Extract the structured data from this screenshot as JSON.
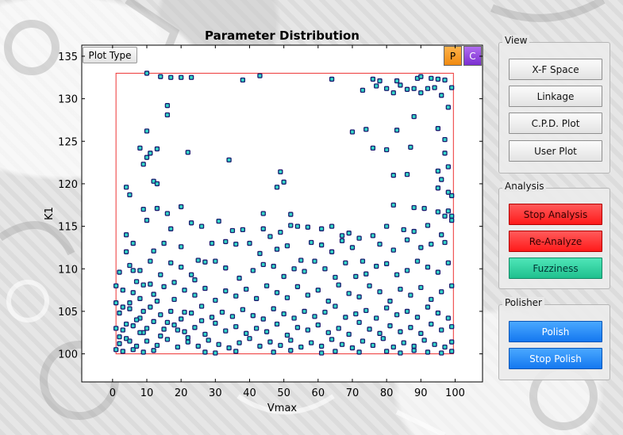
{
  "chart": {
    "title": "Parameter Distribution",
    "plot_type_label": "Plot Type",
    "p_label": "P",
    "c_label": "C"
  },
  "sidebar": {
    "view": {
      "label": "View",
      "buttons": [
        "X-F Space",
        "Linkage",
        "C.P.D. Plot",
        "User Plot"
      ]
    },
    "analysis": {
      "label": "Analysis",
      "buttons": [
        "Stop Analysis",
        "Re-Analyze",
        "Fuzziness"
      ]
    },
    "polisher": {
      "label": "Polisher",
      "buttons": [
        "Polish",
        "Stop Polish"
      ]
    }
  },
  "colors": {
    "marker_fill": "#33d6c8",
    "marker_edge": "#1a1a6e",
    "boundary": "#e33",
    "stop_analysis": "#ff2a2a",
    "fuzziness": "#25c896",
    "polish": "#1e88f5",
    "p_button": "#f89a20",
    "c_button": "#8a3de0"
  },
  "chart_data": {
    "type": "scatter",
    "xlabel": "Vmax",
    "ylabel": "K1",
    "xlim": [
      -9,
      108
    ],
    "ylim": [
      96.7,
      136.3
    ],
    "xticks": [
      0,
      10,
      20,
      30,
      40,
      50,
      60,
      70,
      80,
      90,
      100
    ],
    "yticks": [
      100,
      105,
      110,
      115,
      120,
      125,
      130,
      135
    ],
    "boundary": {
      "x": [
        1,
        99.5
      ],
      "y": [
        100,
        133
      ]
    },
    "points": [
      [
        10,
        133
      ],
      [
        14,
        132.6
      ],
      [
        17,
        132.5
      ],
      [
        20,
        132.5
      ],
      [
        23,
        132.5
      ],
      [
        38,
        132.2
      ],
      [
        43,
        132.7
      ],
      [
        64,
        132.3
      ],
      [
        76,
        132.3
      ],
      [
        78,
        132.1
      ],
      [
        83,
        132.1
      ],
      [
        89,
        132.4
      ],
      [
        90,
        132.6
      ],
      [
        93,
        132.4
      ],
      [
        95,
        132.3
      ],
      [
        97,
        132.2
      ],
      [
        77,
        131.5
      ],
      [
        80,
        131.2
      ],
      [
        84,
        131.6
      ],
      [
        86,
        131.1
      ],
      [
        88,
        131.2
      ],
      [
        92,
        131.2
      ],
      [
        94,
        131.3
      ],
      [
        99,
        131.3
      ],
      [
        73,
        131
      ],
      [
        82,
        130.7
      ],
      [
        90,
        130.7
      ],
      [
        16,
        129.2
      ],
      [
        16,
        128.1
      ],
      [
        88,
        127.9
      ],
      [
        96,
        130.4
      ],
      [
        10,
        126.2
      ],
      [
        70,
        126.1
      ],
      [
        74,
        126.4
      ],
      [
        83,
        126.3
      ],
      [
        95,
        126.5
      ],
      [
        98,
        129
      ],
      [
        8,
        124.2
      ],
      [
        13,
        124.1
      ],
      [
        76,
        124.2
      ],
      [
        80,
        124
      ],
      [
        87,
        124.3
      ],
      [
        97,
        125.2
      ],
      [
        10,
        123.1
      ],
      [
        11,
        123.6
      ],
      [
        22,
        123.7
      ],
      [
        34,
        122.8
      ],
      [
        97,
        123.6
      ],
      [
        98,
        122
      ],
      [
        9,
        122.3
      ],
      [
        12,
        120.3
      ],
      [
        13,
        120
      ],
      [
        4,
        119.6
      ],
      [
        5,
        118.7
      ],
      [
        49,
        121.4
      ],
      [
        50,
        120.2
      ],
      [
        48,
        119.6
      ],
      [
        82,
        121
      ],
      [
        86,
        121.1
      ],
      [
        95,
        121.5
      ],
      [
        96,
        120.5
      ],
      [
        95,
        119.5
      ],
      [
        98,
        119
      ],
      [
        99,
        118.6
      ],
      [
        9,
        117
      ],
      [
        13,
        117.1
      ],
      [
        16,
        116.5
      ],
      [
        20,
        117.3
      ],
      [
        52,
        116.4
      ],
      [
        44,
        116.5
      ],
      [
        82,
        117.5
      ],
      [
        88,
        117.2
      ],
      [
        91,
        117.1
      ],
      [
        95,
        116.7
      ],
      [
        97,
        116.2
      ],
      [
        98,
        116.8
      ],
      [
        99,
        116.2
      ],
      [
        4,
        114
      ],
      [
        10,
        115.7
      ],
      [
        17,
        114.7
      ],
      [
        23,
        115.4
      ],
      [
        26,
        115
      ],
      [
        31,
        115.6
      ],
      [
        35,
        114.5
      ],
      [
        38,
        114.6
      ],
      [
        44,
        114.7
      ],
      [
        46,
        113.8
      ],
      [
        49,
        114.3
      ],
      [
        52,
        115.1
      ],
      [
        54,
        115
      ],
      [
        57,
        114.9
      ],
      [
        61,
        114.7
      ],
      [
        64,
        115
      ],
      [
        67,
        113.9
      ],
      [
        69,
        114.2
      ],
      [
        72,
        113.6
      ],
      [
        76,
        113.9
      ],
      [
        80,
        115
      ],
      [
        85,
        114.6
      ],
      [
        88,
        114.4
      ],
      [
        92,
        115.1
      ],
      [
        96,
        114
      ],
      [
        99,
        115.7
      ],
      [
        4,
        112
      ],
      [
        6,
        113
      ],
      [
        12,
        112.1
      ],
      [
        15,
        113
      ],
      [
        20,
        112.6
      ],
      [
        25,
        111
      ],
      [
        29,
        113
      ],
      [
        33,
        113.2
      ],
      [
        36,
        112.9
      ],
      [
        40,
        113
      ],
      [
        43,
        111.8
      ],
      [
        48,
        112.3
      ],
      [
        51,
        112.7
      ],
      [
        55,
        111
      ],
      [
        58,
        113.1
      ],
      [
        61,
        112.8
      ],
      [
        64,
        112
      ],
      [
        67,
        113.3
      ],
      [
        70,
        112.5
      ],
      [
        73,
        110.9
      ],
      [
        78,
        112.9
      ],
      [
        82,
        112.2
      ],
      [
        86,
        113.4
      ],
      [
        90,
        112.5
      ],
      [
        93,
        112.9
      ],
      [
        97,
        113.1
      ],
      [
        5,
        110.4
      ],
      [
        8,
        109.8
      ],
      [
        11,
        110.9
      ],
      [
        14,
        109.3
      ],
      [
        17,
        110.7
      ],
      [
        20,
        110.2
      ],
      [
        23,
        109.3
      ],
      [
        27,
        110.8
      ],
      [
        30,
        110.9
      ],
      [
        33,
        110.1
      ],
      [
        37,
        108.9
      ],
      [
        41,
        109.8
      ],
      [
        44,
        110.5
      ],
      [
        47,
        110.3
      ],
      [
        50,
        109.1
      ],
      [
        53,
        110
      ],
      [
        56,
        109.7
      ],
      [
        59,
        110.9
      ],
      [
        62,
        110
      ],
      [
        65,
        109
      ],
      [
        68,
        110.7
      ],
      [
        71,
        109.1
      ],
      [
        74,
        109.4
      ],
      [
        77,
        110.3
      ],
      [
        80,
        110.6
      ],
      [
        83,
        109.3
      ],
      [
        86,
        109.8
      ],
      [
        89,
        110.9
      ],
      [
        92,
        110.2
      ],
      [
        95,
        109.6
      ],
      [
        98,
        110.7
      ],
      [
        3,
        107.5
      ],
      [
        6,
        107.2
      ],
      [
        9,
        108.1
      ],
      [
        12,
        107
      ],
      [
        15,
        107.9
      ],
      [
        18,
        106.4
      ],
      [
        21,
        107.5
      ],
      [
        24,
        106.9
      ],
      [
        27,
        107.7
      ],
      [
        30,
        106.3
      ],
      [
        33,
        107.4
      ],
      [
        36,
        106.8
      ],
      [
        39,
        107.6
      ],
      [
        42,
        106.5
      ],
      [
        45,
        108
      ],
      [
        48,
        107.2
      ],
      [
        51,
        106.6
      ],
      [
        54,
        107.9
      ],
      [
        57,
        106.9
      ],
      [
        60,
        107.5
      ],
      [
        63,
        106.2
      ],
      [
        66,
        108.1
      ],
      [
        69,
        107.1
      ],
      [
        72,
        106.7
      ],
      [
        75,
        108
      ],
      [
        78,
        107.3
      ],
      [
        81,
        106.2
      ],
      [
        84,
        107.6
      ],
      [
        87,
        106.9
      ],
      [
        90,
        107.8
      ],
      [
        93,
        106.4
      ],
      [
        96,
        107.3
      ],
      [
        99,
        108
      ],
      [
        2,
        104.8
      ],
      [
        5,
        105.3
      ],
      [
        8,
        104.2
      ],
      [
        11,
        105.5
      ],
      [
        14,
        104.6
      ],
      [
        17,
        105
      ],
      [
        20,
        104.1
      ],
      [
        23,
        104.8
      ],
      [
        26,
        105.6
      ],
      [
        29,
        104.3
      ],
      [
        32,
        104.9
      ],
      [
        35,
        104.4
      ],
      [
        38,
        105.2
      ],
      [
        41,
        104.5
      ],
      [
        44,
        104.1
      ],
      [
        47,
        105.3
      ],
      [
        50,
        104.7
      ],
      [
        53,
        104.2
      ],
      [
        56,
        105
      ],
      [
        59,
        104.4
      ],
      [
        62,
        104.9
      ],
      [
        65,
        105.6
      ],
      [
        68,
        104.3
      ],
      [
        71,
        104.7
      ],
      [
        74,
        105.1
      ],
      [
        77,
        104.2
      ],
      [
        80,
        105.4
      ],
      [
        83,
        104.6
      ],
      [
        86,
        105
      ],
      [
        89,
        104.3
      ],
      [
        92,
        105.5
      ],
      [
        95,
        104.8
      ],
      [
        98,
        104.2
      ],
      [
        3,
        102.8
      ],
      [
        6,
        103.3
      ],
      [
        9,
        102.5
      ],
      [
        12,
        103.8
      ],
      [
        15,
        102.9
      ],
      [
        18,
        103.4
      ],
      [
        21,
        102.6
      ],
      [
        24,
        103.1
      ],
      [
        27,
        102.3
      ],
      [
        30,
        103.6
      ],
      [
        33,
        102.7
      ],
      [
        36,
        103.2
      ],
      [
        39,
        102.4
      ],
      [
        42,
        103
      ],
      [
        45,
        102.6
      ],
      [
        48,
        103.5
      ],
      [
        51,
        102.2
      ],
      [
        54,
        103.1
      ],
      [
        57,
        102.8
      ],
      [
        60,
        103.4
      ],
      [
        63,
        102.5
      ],
      [
        66,
        103
      ],
      [
        69,
        102.3
      ],
      [
        72,
        103.7
      ],
      [
        75,
        102.9
      ],
      [
        78,
        102.4
      ],
      [
        81,
        103.3
      ],
      [
        84,
        102.6
      ],
      [
        87,
        103.1
      ],
      [
        90,
        102.4
      ],
      [
        93,
        103.5
      ],
      [
        96,
        102.8
      ],
      [
        99,
        103.2
      ],
      [
        2,
        101.2
      ],
      [
        4,
        101.8
      ],
      [
        7,
        100.9
      ],
      [
        10,
        101.5
      ],
      [
        13,
        101
      ],
      [
        16,
        101.7
      ],
      [
        19,
        100.8
      ],
      [
        22,
        101.4
      ],
      [
        25,
        100.9
      ],
      [
        28,
        101.6
      ],
      [
        31,
        101.1
      ],
      [
        34,
        100.7
      ],
      [
        37,
        101.3
      ],
      [
        40,
        101.8
      ],
      [
        43,
        100.9
      ],
      [
        46,
        101.4
      ],
      [
        49,
        101
      ],
      [
        52,
        101.6
      ],
      [
        55,
        100.8
      ],
      [
        58,
        101.3
      ],
      [
        61,
        100.9
      ],
      [
        64,
        101.7
      ],
      [
        67,
        101.1
      ],
      [
        70,
        100.7
      ],
      [
        73,
        101.5
      ],
      [
        76,
        101
      ],
      [
        79,
        101.8
      ],
      [
        82,
        100.8
      ],
      [
        85,
        101.3
      ],
      [
        88,
        100.9
      ],
      [
        91,
        101.6
      ],
      [
        94,
        101.1
      ],
      [
        97,
        100.8
      ],
      [
        99,
        101.4
      ],
      [
        3,
        100.3
      ],
      [
        6,
        100.5
      ],
      [
        9,
        100.2
      ],
      [
        12,
        100.4
      ],
      [
        27,
        100.2
      ],
      [
        30,
        100.1
      ],
      [
        36,
        100.3
      ],
      [
        47,
        100.2
      ],
      [
        52,
        100.4
      ],
      [
        61,
        100.1
      ],
      [
        65,
        100.3
      ],
      [
        72,
        100.2
      ],
      [
        80,
        100.3
      ],
      [
        84,
        100.1
      ],
      [
        88,
        100.4
      ],
      [
        92,
        100.2
      ],
      [
        96,
        100.1
      ],
      [
        99,
        100.3
      ],
      [
        1,
        103
      ],
      [
        1,
        106
      ],
      [
        1,
        108
      ],
      [
        2,
        109.6
      ],
      [
        1,
        100.5
      ],
      [
        2,
        102
      ],
      [
        4,
        103.5
      ],
      [
        5,
        106
      ],
      [
        7,
        108.5
      ],
      [
        8,
        102.5
      ],
      [
        3,
        105.5
      ],
      [
        5,
        101.5
      ],
      [
        6,
        109.8
      ],
      [
        7,
        104
      ],
      [
        8,
        106.5
      ],
      [
        9,
        105
      ],
      [
        10,
        103
      ],
      [
        11,
        108.2
      ],
      [
        13,
        106.2
      ],
      [
        14,
        102.1
      ],
      [
        16,
        103.7
      ],
      [
        18,
        108.4
      ],
      [
        19,
        102.8
      ],
      [
        21,
        104.9
      ],
      [
        22,
        101.9
      ],
      [
        24,
        108.7
      ],
      [
        26,
        103.9
      ]
    ]
  }
}
